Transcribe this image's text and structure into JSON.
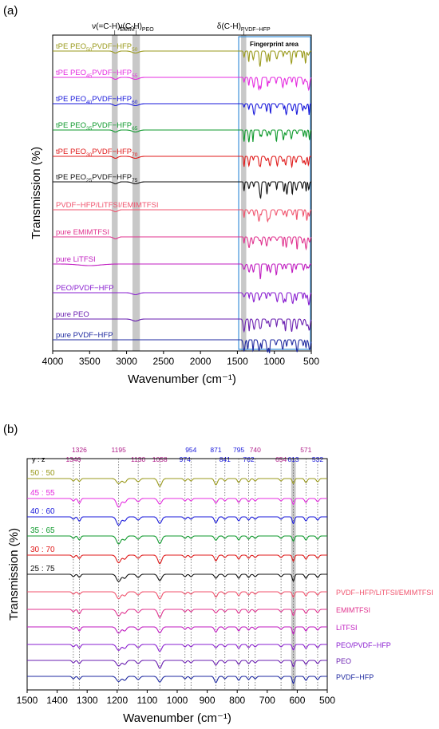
{
  "chart_data": [
    {
      "type": "line",
      "panel_label": "(a)",
      "xlabel": "Wavenumber (cm⁻¹)",
      "ylabel": "Transmission (%)",
      "xlim": [
        4000,
        500
      ],
      "x_ticks": [
        "4000",
        "3500",
        "3000",
        "2500",
        "2000",
        "1500",
        "1000",
        "500"
      ],
      "x_tick_values": [
        4000,
        3500,
        3000,
        2500,
        2000,
        1500,
        1000,
        500
      ],
      "bands": [
        {
          "from": 3200,
          "to": 3120,
          "label_base": "ν(=C-H)",
          "label_sub": "EMIM⁺"
        },
        {
          "from": 2920,
          "to": 2820,
          "label_base": "ν(C-H)",
          "label_sub": "PEO"
        },
        {
          "from": 1450,
          "to": 1380,
          "label_base": "δ(C-H)",
          "label_sub": "PVDF−HFP"
        }
      ],
      "fingerprint_area": {
        "from": 1450,
        "to": 500,
        "label": "Fingerprint area"
      },
      "series": [
        {
          "base": "tPE PEO",
          "s1": "50",
          "mid": "PVDF−HFP",
          "s2": "50",
          "color": "#9a9a1c"
        },
        {
          "base": "tPE PEO",
          "s1": "45",
          "mid": "PVDF−HFP",
          "s2": "55",
          "color": "#e52ce0"
        },
        {
          "base": "tPE PEO",
          "s1": "40",
          "mid": "PVDF−HFP",
          "s2": "60",
          "color": "#1a1adb"
        },
        {
          "base": "tPE PEO",
          "s1": "35",
          "mid": "PVDF−HFP",
          "s2": "65",
          "color": "#0f9a2d"
        },
        {
          "base": "tPE PEO",
          "s1": "30",
          "mid": "PVDF−HFP",
          "s2": "70",
          "color": "#e01b1b"
        },
        {
          "base": "tPE PEO",
          "s1": "25",
          "mid": "PVDF−HFP",
          "s2": "75",
          "color": "#111111"
        },
        {
          "base": "PVDF−HFP/LiTFSI/EMIMTFSI",
          "s1": "",
          "mid": "",
          "s2": "",
          "color": "#f0536d"
        },
        {
          "base": "pure EMIMTFSI",
          "s1": "",
          "mid": "",
          "s2": "",
          "color": "#e0338f"
        },
        {
          "base": "pure LiTFSI",
          "s1": "",
          "mid": "",
          "s2": "",
          "color": "#c01cc0"
        },
        {
          "base": "PEO/PVDF−HFP",
          "s1": "",
          "mid": "",
          "s2": "",
          "color": "#8a1fd0"
        },
        {
          "base": "pure PEO",
          "s1": "",
          "mid": "",
          "s2": "",
          "color": "#6a1fb0"
        },
        {
          "base": "pure PVDF−HFP",
          "s1": "",
          "mid": "",
          "s2": "",
          "color": "#1f2aa0"
        }
      ]
    },
    {
      "type": "line",
      "panel_label": "(b)",
      "xlabel": "Wavenumber (cm⁻¹)",
      "ylabel": "Transmission (%)",
      "xlim": [
        1500,
        500
      ],
      "x_ticks": [
        "1500",
        "1400",
        "1300",
        "1200",
        "1100",
        "1000",
        "900",
        "800",
        "700",
        "600",
        "500"
      ],
      "x_tick_values": [
        1500,
        1400,
        1300,
        1200,
        1100,
        1000,
        900,
        800,
        700,
        600,
        500
      ],
      "yz_label": "y : z",
      "highlight_band": {
        "from": 620,
        "to": 605
      },
      "peaks_top": [
        {
          "value": 1326,
          "color": "#b0208a"
        },
        {
          "value": 1195,
          "color": "#b0208a"
        },
        {
          "value": 954,
          "color": "#1a1adb"
        },
        {
          "value": 871,
          "color": "#1a1adb"
        },
        {
          "value": 795,
          "color": "#1a1adb"
        },
        {
          "value": 740,
          "color": "#b0208a"
        },
        {
          "value": 571,
          "color": "#b0208a"
        }
      ],
      "peaks_bottom": [
        {
          "value": 1346,
          "color": "#b0208a"
        },
        {
          "value": 1130,
          "color": "#b0208a"
        },
        {
          "value": 1058,
          "color": "#b0208a"
        },
        {
          "value": 974,
          "color": "#1a1adb"
        },
        {
          "value": 841,
          "color": "#1a1adb"
        },
        {
          "value": 762,
          "color": "#1a1adb"
        },
        {
          "value": 654,
          "color": "#b0208a"
        },
        {
          "value": 613,
          "color": "#1a1adb"
        },
        {
          "value": 532,
          "color": "#1a1adb"
        }
      ],
      "series": [
        {
          "name": "50 : 50",
          "color": "#9a9a1c",
          "label_side": "left"
        },
        {
          "name": "45 : 55",
          "color": "#e52ce0",
          "label_side": "left"
        },
        {
          "name": "40 : 60",
          "color": "#1a1adb",
          "label_side": "left"
        },
        {
          "name": "35 : 65",
          "color": "#0f9a2d",
          "label_side": "left"
        },
        {
          "name": "30 : 70",
          "color": "#e01b1b",
          "label_side": "left"
        },
        {
          "name": "25 : 75",
          "color": "#111111",
          "label_side": "left"
        },
        {
          "name": "PVDF−HFP/LiTFSI/EMIMTFSI",
          "color": "#f0536d",
          "label_side": "right"
        },
        {
          "name": "EMIMTFSI",
          "color": "#e0338f",
          "label_side": "right"
        },
        {
          "name": "LiTFSI",
          "color": "#c01cc0",
          "label_side": "right"
        },
        {
          "name": "PEO/PVDF−HFP",
          "color": "#8a1fd0",
          "label_side": "right"
        },
        {
          "name": "PEO",
          "color": "#6a1fb0",
          "label_side": "right"
        },
        {
          "name": "PVDF−HFP",
          "color": "#1f2aa0",
          "label_side": "right"
        }
      ]
    }
  ]
}
